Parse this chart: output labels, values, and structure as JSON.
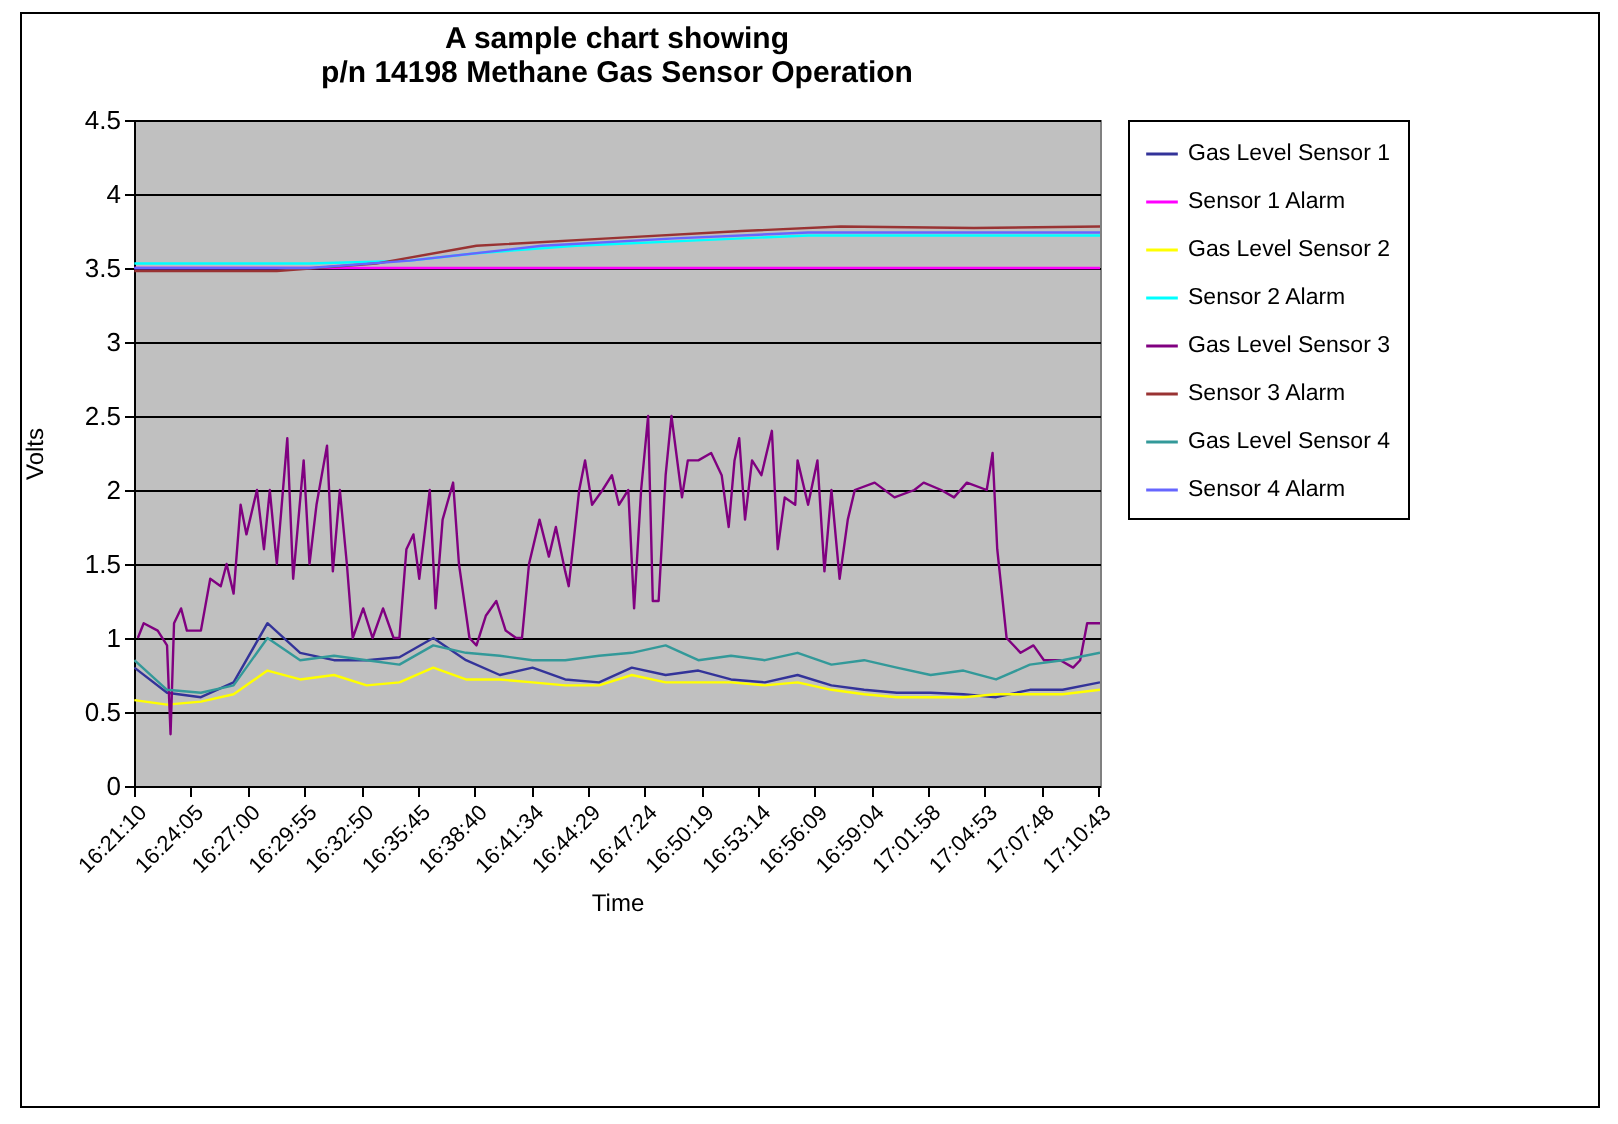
{
  "chart_data": {
    "type": "line",
    "title": [
      "A sample chart showing",
      "p/n 14198 Methane Gas Sensor Operation"
    ],
    "xlabel": "Time",
    "ylabel": "Volts",
    "xlim": [
      16.3527,
      17.18
    ],
    "ylim": [
      0,
      4.5
    ],
    "xticks": [
      {
        "value": 16.35278,
        "label": "16:21:10"
      },
      {
        "value": 16.40139,
        "label": "16:24:05"
      },
      {
        "value": 16.45,
        "label": "16:27:00"
      },
      {
        "value": 16.49861,
        "label": "16:29:55"
      },
      {
        "value": 16.54722,
        "label": "16:32:50"
      },
      {
        "value": 16.59583,
        "label": "16:35:45"
      },
      {
        "value": 16.64444,
        "label": "16:38:40"
      },
      {
        "value": 16.69278,
        "label": "16:41:34"
      },
      {
        "value": 16.74139,
        "label": "16:44:29"
      },
      {
        "value": 16.79,
        "label": "16:47:24"
      },
      {
        "value": 16.83861,
        "label": "16:50:19"
      },
      {
        "value": 16.88722,
        "label": "16:53:14"
      },
      {
        "value": 16.93583,
        "label": "16:56:09"
      },
      {
        "value": 16.98444,
        "label": "16:59:04"
      },
      {
        "value": 17.03278,
        "label": "17:01:58"
      },
      {
        "value": 17.08139,
        "label": "17:04:53"
      },
      {
        "value": 17.13,
        "label": "17:07:48"
      },
      {
        "value": 17.17861,
        "label": "17:10:43"
      }
    ],
    "yticks": [
      0,
      0.5,
      1,
      1.5,
      2,
      2.5,
      3,
      3.5,
      4,
      4.5
    ],
    "grid": "y",
    "legend": "right",
    "line_style": "solid",
    "marker": "none",
    "x": [
      16.353,
      16.381,
      16.41,
      16.438,
      16.467,
      16.495,
      16.524,
      16.552,
      16.58,
      16.609,
      16.637,
      16.666,
      16.694,
      16.722,
      16.751,
      16.779,
      16.808,
      16.836,
      16.864,
      16.893,
      16.921,
      16.95,
      16.978,
      17.006,
      17.035,
      17.063,
      17.091,
      17.12,
      17.148,
      17.18
    ],
    "series": [
      {
        "name": "Gas Level Sensor 1",
        "color": "#333399",
        "values": [
          0.8,
          0.63,
          0.6,
          0.7,
          1.1,
          0.9,
          0.85,
          0.85,
          0.87,
          1.0,
          0.85,
          0.75,
          0.8,
          0.72,
          0.7,
          0.8,
          0.75,
          0.78,
          0.72,
          0.7,
          0.75,
          0.68,
          0.65,
          0.63,
          0.63,
          0.62,
          0.6,
          0.65,
          0.65,
          0.7
        ]
      },
      {
        "name": "Sensor 1 Alarm",
        "color": "#ff00ff",
        "x": [
          16.353,
          17.18
        ],
        "values": [
          3.5,
          3.5
        ]
      },
      {
        "name": "Gas Level Sensor 2",
        "color": "#ffff00",
        "values": [
          0.58,
          0.55,
          0.57,
          0.62,
          0.78,
          0.72,
          0.75,
          0.68,
          0.7,
          0.8,
          0.72,
          0.72,
          0.7,
          0.68,
          0.68,
          0.75,
          0.7,
          0.7,
          0.7,
          0.68,
          0.7,
          0.65,
          0.62,
          0.6,
          0.6,
          0.6,
          0.62,
          0.62,
          0.62,
          0.65
        ]
      },
      {
        "name": "Sensor 2 Alarm",
        "color": "#00ffff",
        "x": [
          16.353,
          16.503,
          16.589,
          16.646,
          16.731,
          16.816,
          16.93,
          17.18
        ],
        "values": [
          3.53,
          3.53,
          3.55,
          3.6,
          3.65,
          3.68,
          3.72,
          3.72
        ]
      },
      {
        "name": "Gas Level Sensor 3",
        "color": "#800080",
        "x": [
          16.356,
          16.361,
          16.373,
          16.381,
          16.384,
          16.387,
          16.393,
          16.398,
          16.41,
          16.418,
          16.427,
          16.432,
          16.438,
          16.444,
          16.449,
          16.458,
          16.464,
          16.469,
          16.475,
          16.484,
          16.489,
          16.498,
          16.503,
          16.509,
          16.518,
          16.523,
          16.529,
          16.535,
          16.54,
          16.549,
          16.557,
          16.566,
          16.575,
          16.58,
          16.586,
          16.592,
          16.597,
          16.606,
          16.611,
          16.617,
          16.626,
          16.631,
          16.64,
          16.646,
          16.654,
          16.663,
          16.671,
          16.68,
          16.685,
          16.691,
          16.7,
          16.708,
          16.714,
          16.722,
          16.725,
          16.734,
          16.739,
          16.745,
          16.754,
          16.762,
          16.768,
          16.776,
          16.781,
          16.787,
          16.793,
          16.797,
          16.802,
          16.808,
          16.813,
          16.822,
          16.827,
          16.836,
          16.847,
          16.856,
          16.862,
          16.867,
          16.871,
          16.876,
          16.882,
          16.89,
          16.899,
          16.904,
          16.91,
          16.919,
          16.921,
          16.93,
          16.938,
          16.944,
          16.95,
          16.957,
          16.964,
          16.97,
          16.987,
          17.004,
          17.021,
          17.029,
          17.044,
          17.055,
          17.066,
          17.083,
          17.088,
          17.092,
          17.1,
          17.112,
          17.123,
          17.132,
          17.146,
          17.157,
          17.163,
          17.169,
          17.18
        ],
        "values": [
          1.0,
          1.1,
          1.05,
          0.95,
          0.35,
          1.1,
          1.2,
          1.05,
          1.05,
          1.4,
          1.35,
          1.5,
          1.3,
          1.9,
          1.7,
          2.0,
          1.6,
          2.0,
          1.5,
          2.35,
          1.4,
          2.2,
          1.5,
          1.9,
          2.3,
          1.45,
          2.0,
          1.5,
          1.0,
          1.2,
          1.0,
          1.2,
          1.0,
          1.0,
          1.6,
          1.7,
          1.4,
          2.0,
          1.2,
          1.8,
          2.05,
          1.5,
          1.0,
          0.95,
          1.15,
          1.25,
          1.05,
          1.0,
          1.0,
          1.5,
          1.8,
          1.55,
          1.75,
          1.45,
          1.35,
          2.0,
          2.2,
          1.9,
          2.0,
          2.1,
          1.9,
          2.0,
          1.2,
          2.0,
          2.5,
          1.25,
          1.25,
          2.1,
          2.5,
          1.95,
          2.2,
          2.2,
          2.25,
          2.1,
          1.75,
          2.2,
          2.35,
          1.8,
          2.2,
          2.1,
          2.4,
          1.6,
          1.95,
          1.9,
          2.2,
          1.9,
          2.2,
          1.45,
          2.0,
          1.4,
          1.8,
          2.0,
          2.05,
          1.95,
          2.0,
          2.05,
          2.0,
          1.95,
          2.05,
          2.0,
          2.25,
          1.6,
          1.0,
          0.9,
          0.95,
          0.85,
          0.85,
          0.8,
          0.85,
          1.1,
          1.1
        ]
      },
      {
        "name": "Sensor 3 Alarm",
        "color": "#993333",
        "x": [
          16.353,
          16.475,
          16.56,
          16.646,
          16.759,
          16.873,
          16.958,
          17.072,
          17.18
        ],
        "values": [
          3.48,
          3.48,
          3.53,
          3.65,
          3.7,
          3.75,
          3.78,
          3.77,
          3.78
        ]
      },
      {
        "name": "Gas Level Sensor 4",
        "color": "#339999",
        "values": [
          0.85,
          0.65,
          0.63,
          0.68,
          1.0,
          0.85,
          0.88,
          0.85,
          0.82,
          0.95,
          0.9,
          0.88,
          0.85,
          0.85,
          0.88,
          0.9,
          0.95,
          0.85,
          0.88,
          0.85,
          0.9,
          0.82,
          0.85,
          0.8,
          0.75,
          0.78,
          0.72,
          0.82,
          0.85,
          0.9
        ]
      },
      {
        "name": "Sensor 4 Alarm",
        "color": "#6666ff",
        "x": [
          16.353,
          16.503,
          16.589,
          16.702,
          16.816,
          16.93,
          17.18
        ],
        "values": [
          3.5,
          3.5,
          3.55,
          3.65,
          3.7,
          3.74,
          3.74
        ]
      }
    ]
  }
}
